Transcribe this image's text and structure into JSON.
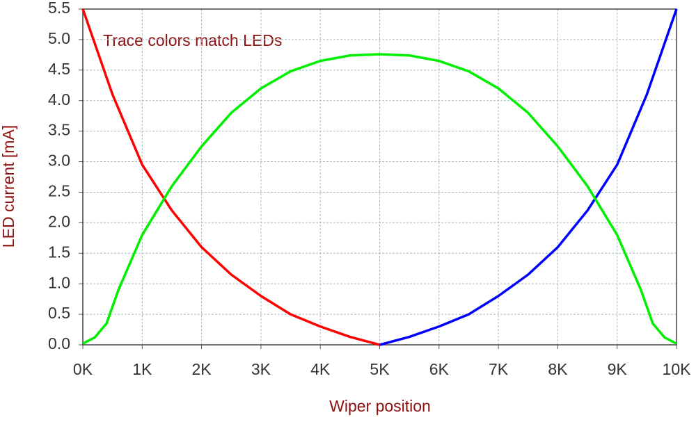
{
  "chart_data": {
    "type": "line",
    "annotation": "Trace colors match LEDs",
    "xlabel": "Wiper position",
    "ylabel": "LED current [mA]",
    "xlim": [
      0,
      10000
    ],
    "ylim": [
      0,
      5.5
    ],
    "xticks": [
      {
        "value": 0,
        "label": "0K"
      },
      {
        "value": 1000,
        "label": "1K"
      },
      {
        "value": 2000,
        "label": "2K"
      },
      {
        "value": 3000,
        "label": "3K"
      },
      {
        "value": 4000,
        "label": "4K"
      },
      {
        "value": 5000,
        "label": "5K"
      },
      {
        "value": 6000,
        "label": "6K"
      },
      {
        "value": 7000,
        "label": "7K"
      },
      {
        "value": 8000,
        "label": "8K"
      },
      {
        "value": 9000,
        "label": "9K"
      },
      {
        "value": 10000,
        "label": "10K"
      }
    ],
    "yticks": [
      {
        "value": 0,
        "label": "0.0"
      },
      0.5,
      {
        "value": 1,
        "label": "1.0"
      },
      1.5,
      {
        "value": 2,
        "label": "2.0"
      },
      2.5,
      {
        "value": 3,
        "label": "3.0"
      },
      3.5,
      {
        "value": 4,
        "label": "4.0"
      },
      4.5,
      {
        "value": 5,
        "label": "5.0"
      },
      5.5
    ],
    "grid": true,
    "series": [
      {
        "color": "#ff0000",
        "x": [
          0,
          500,
          1000,
          1500,
          2000,
          2500,
          3000,
          3500,
          4000,
          4500,
          5000
        ],
        "values": [
          5.5,
          4.1,
          2.95,
          2.2,
          1.6,
          1.15,
          0.8,
          0.5,
          0.3,
          0.13,
          0
        ]
      },
      {
        "color": "#0000ff",
        "x": [
          5000,
          5500,
          6000,
          6500,
          7000,
          7500,
          8000,
          8500,
          9000,
          9500,
          10000
        ],
        "values": [
          0,
          0.13,
          0.3,
          0.5,
          0.8,
          1.15,
          1.6,
          2.2,
          2.95,
          4.1,
          5.5
        ]
      },
      {
        "color": "#00ee00",
        "x": [
          0,
          200,
          400,
          600,
          800,
          1000,
          1500,
          2000,
          2500,
          3000,
          3500,
          4000,
          4500,
          5000,
          5500,
          6000,
          6500,
          7000,
          7500,
          8000,
          8500,
          9000,
          9200,
          9400,
          9600,
          9800,
          10000
        ],
        "values": [
          0.02,
          0.12,
          0.35,
          0.9,
          1.35,
          1.8,
          2.6,
          3.25,
          3.8,
          4.2,
          4.48,
          4.65,
          4.74,
          4.76,
          4.74,
          4.65,
          4.48,
          4.2,
          3.8,
          3.25,
          2.6,
          1.8,
          1.35,
          0.9,
          0.35,
          0.12,
          0.02
        ]
      }
    ]
  }
}
